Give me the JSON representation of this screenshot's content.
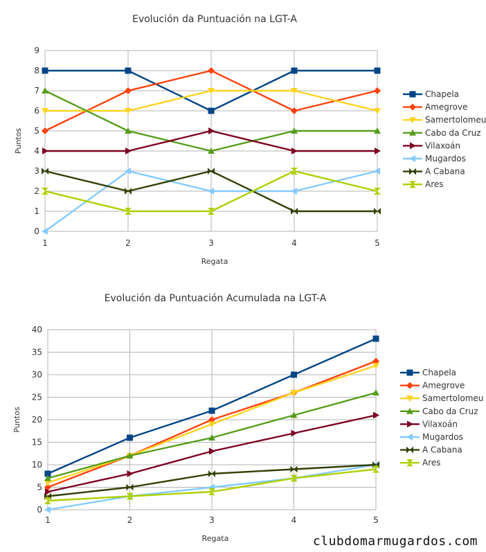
{
  "watermark": "clubdomarmugardos.com",
  "chart_data": [
    {
      "type": "line",
      "title": "Evolución da Puntuación na LGT-A",
      "xlabel": "Regata",
      "ylabel": "Puntos",
      "x": [
        1,
        2,
        3,
        4,
        5
      ],
      "ylim": [
        0,
        9
      ],
      "yticks": [
        0,
        1,
        2,
        3,
        4,
        5,
        6,
        7,
        8,
        9
      ],
      "grid": true,
      "legend": "right",
      "series": [
        {
          "name": "Chapela",
          "color": "#004586",
          "marker": "square",
          "values": [
            8,
            8,
            6,
            8,
            8
          ]
        },
        {
          "name": "Amegrove",
          "color": "#ff420e",
          "marker": "diamond",
          "values": [
            5,
            7,
            8,
            6,
            7
          ]
        },
        {
          "name": "Samertolomeu",
          "color": "#ffd320",
          "marker": "triangle-down",
          "values": [
            6,
            6,
            7,
            7,
            6
          ]
        },
        {
          "name": "Cabo da Cruz",
          "color": "#579d1c",
          "marker": "triangle-up",
          "values": [
            7,
            5,
            4,
            5,
            5
          ]
        },
        {
          "name": "Vilaxoán",
          "color": "#7e0021",
          "marker": "triangle-right",
          "values": [
            4,
            4,
            5,
            4,
            4
          ]
        },
        {
          "name": "Mugardos",
          "color": "#83caff",
          "marker": "triangle-left",
          "values": [
            0,
            3,
            2,
            2,
            3
          ]
        },
        {
          "name": "A Cabana",
          "color": "#314004",
          "marker": "bowtie",
          "values": [
            3,
            2,
            3,
            1,
            1
          ]
        },
        {
          "name": "Ares",
          "color": "#aecf00",
          "marker": "hourglass",
          "values": [
            2,
            1,
            1,
            3,
            2
          ]
        }
      ]
    },
    {
      "type": "line",
      "title": "Evolución da Puntuación Acumulada na LGT-A",
      "xlabel": "Regata",
      "ylabel": "Puntos",
      "x": [
        1,
        2,
        3,
        4,
        5
      ],
      "ylim": [
        0,
        40
      ],
      "yticks": [
        0,
        5,
        10,
        15,
        20,
        25,
        30,
        35,
        40
      ],
      "grid": true,
      "legend": "right",
      "series": [
        {
          "name": "Chapela",
          "color": "#004586",
          "marker": "square",
          "values": [
            8,
            16,
            22,
            30,
            38
          ]
        },
        {
          "name": "Amegrove",
          "color": "#ff420e",
          "marker": "diamond",
          "values": [
            5,
            12,
            20,
            26,
            33
          ]
        },
        {
          "name": "Samertolomeu",
          "color": "#ffd320",
          "marker": "triangle-down",
          "values": [
            6,
            12,
            19,
            26,
            32
          ]
        },
        {
          "name": "Cabo da Cruz",
          "color": "#579d1c",
          "marker": "triangle-up",
          "values": [
            7,
            12,
            16,
            21,
            26
          ]
        },
        {
          "name": "Vilaxoán",
          "color": "#7e0021",
          "marker": "triangle-right",
          "values": [
            4,
            8,
            13,
            17,
            21
          ]
        },
        {
          "name": "Mugardos",
          "color": "#83caff",
          "marker": "triangle-left",
          "values": [
            0,
            3,
            5,
            7,
            10
          ]
        },
        {
          "name": "A Cabana",
          "color": "#314004",
          "marker": "bowtie",
          "values": [
            3,
            5,
            8,
            9,
            10
          ]
        },
        {
          "name": "Ares",
          "color": "#aecf00",
          "marker": "hourglass",
          "values": [
            2,
            3,
            4,
            7,
            9
          ]
        }
      ]
    }
  ]
}
